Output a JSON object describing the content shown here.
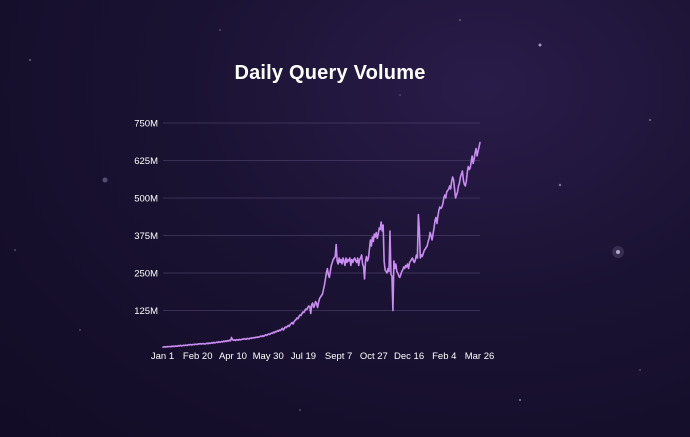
{
  "chart_data": {
    "type": "line",
    "title": "Daily Query Volume",
    "xlabel": "",
    "ylabel": "",
    "grid": true,
    "legend": "none",
    "ylim": [
      0,
      750
    ],
    "y_unit": "M",
    "y_ticks": [
      "125M",
      "250M",
      "375M",
      "500M",
      "625M",
      "750M"
    ],
    "x_ticks": [
      "Jan 1",
      "Feb 20",
      "Apr 10",
      "May 30",
      "Jul 19",
      "Sept 7",
      "Oct 27",
      "Dec 16",
      "Feb 4",
      "Mar 26"
    ],
    "colors": {
      "line": "#c98cf0",
      "grid": "#5a4e78",
      "axis_text": "#ffffff"
    },
    "series": [
      {
        "values": [
          3,
          4,
          4,
          3,
          5,
          4,
          5,
          5,
          4,
          6,
          5,
          6,
          5,
          7,
          6,
          6,
          8,
          7,
          9,
          7,
          8,
          9,
          8,
          10,
          9,
          9,
          11,
          10,
          12,
          10,
          11,
          12,
          11,
          13,
          12,
          12,
          14,
          13,
          15,
          13,
          14,
          15,
          14,
          13,
          15,
          16,
          14,
          17,
          15,
          16,
          18,
          16,
          19,
          17,
          18,
          20,
          18,
          21,
          19,
          20,
          22,
          20,
          23,
          21,
          24,
          22,
          25,
          23,
          26,
          24,
          35,
          28,
          26,
          27,
          25,
          28,
          27,
          26,
          29,
          27,
          28,
          30,
          29,
          31,
          30,
          29,
          32,
          31,
          30,
          33,
          32,
          34,
          33,
          35,
          34,
          36,
          35,
          37,
          36,
          38,
          40,
          38,
          41,
          39,
          42,
          44,
          42,
          45,
          47,
          45,
          48,
          50,
          49,
          53,
          51,
          55,
          54,
          58,
          56,
          60,
          58,
          62,
          66,
          60,
          65,
          70,
          68,
          72,
          75,
          72,
          78,
          82,
          85,
          80,
          88,
          92,
          95,
          100,
          98,
          105,
          110,
          108,
          115,
          120,
          118,
          125,
          130,
          128,
          135,
          140,
          138,
          115,
          145,
          150,
          135,
          142,
          155,
          148,
          135,
          152,
          165,
          170,
          175,
          180,
          195,
          210,
          230,
          250,
          265,
          245,
          235,
          255,
          275,
          285,
          295,
          300,
          305,
          345,
          290,
          280,
          300,
          285,
          295,
          280,
          300,
          290,
          275,
          300,
          285,
          295,
          290,
          300,
          275,
          295,
          285,
          295,
          300,
          290,
          285,
          300,
          275,
          295,
          300,
          310,
          280,
          270,
          230,
          290,
          305,
          290,
          300,
          330,
          360,
          340,
          370,
          355,
          380,
          370,
          385,
          365,
          380,
          400,
          395,
          420,
          390,
          410,
          290,
          260,
          255,
          250,
          265,
          255,
          390,
          245,
          240,
          125,
          290,
          265,
          280,
          255,
          250,
          240,
          235,
          245,
          255,
          260,
          270,
          265,
          275,
          270,
          280,
          265,
          285,
          290,
          295,
          300,
          290,
          285,
          295,
          310,
          300,
          445,
          395,
          300,
          310,
          305,
          315,
          325,
          330,
          335,
          340,
          355,
          365,
          385,
          375,
          360,
          380,
          400,
          425,
          435,
          415,
          440,
          460,
          470,
          465,
          470,
          480,
          500,
          510,
          500,
          520,
          525,
          530,
          540,
          530,
          555,
          570,
          560,
          530,
          500,
          510,
          520,
          540,
          550,
          570,
          580,
          590,
          560,
          545,
          540,
          555,
          585,
          605,
          595,
          600,
          620,
          640,
          615,
          630,
          650,
          665,
          640,
          655,
          670,
          685
        ]
      }
    ]
  }
}
